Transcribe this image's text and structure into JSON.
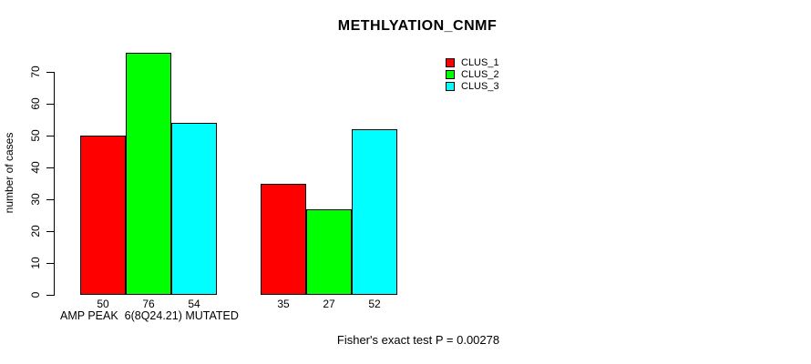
{
  "title": "METHLYATION_CNMF",
  "x_axis_label": "AMP PEAK  6(8Q24.21) MUTATED",
  "y_axis": {
    "label": "number of cases",
    "ticks": [
      0,
      10,
      20,
      30,
      40,
      50,
      60,
      70
    ]
  },
  "legend": {
    "items": [
      {
        "label": "CLUS_1",
        "color": "#ff0000"
      },
      {
        "label": "CLUS_2",
        "color": "#00ff00"
      },
      {
        "label": "CLUS_3",
        "color": "#00ffff"
      }
    ]
  },
  "footer": "Fisher's exact test P = 0.00278",
  "chart_data": {
    "type": "bar",
    "grouped": true,
    "title": "METHLYATION_CNMF",
    "xlabel": "AMP PEAK  6(8Q24.21) MUTATED",
    "ylabel": "number of cases",
    "ylim": [
      0,
      70
    ],
    "yticks": [
      0,
      10,
      20,
      30,
      40,
      50,
      60,
      70
    ],
    "grid": false,
    "legend_position": "top-right",
    "series": [
      {
        "name": "CLUS_1",
        "color": "#ff0000",
        "values": [
          50,
          35
        ]
      },
      {
        "name": "CLUS_2",
        "color": "#00ff00",
        "values": [
          76,
          27
        ]
      },
      {
        "name": "CLUS_3",
        "color": "#00ffff",
        "values": [
          54,
          52
        ]
      }
    ],
    "bar_value_labels": [
      [
        50,
        76,
        54
      ],
      [
        35,
        27,
        52
      ]
    ],
    "annotation": "Fisher's exact test P = 0.00278"
  }
}
